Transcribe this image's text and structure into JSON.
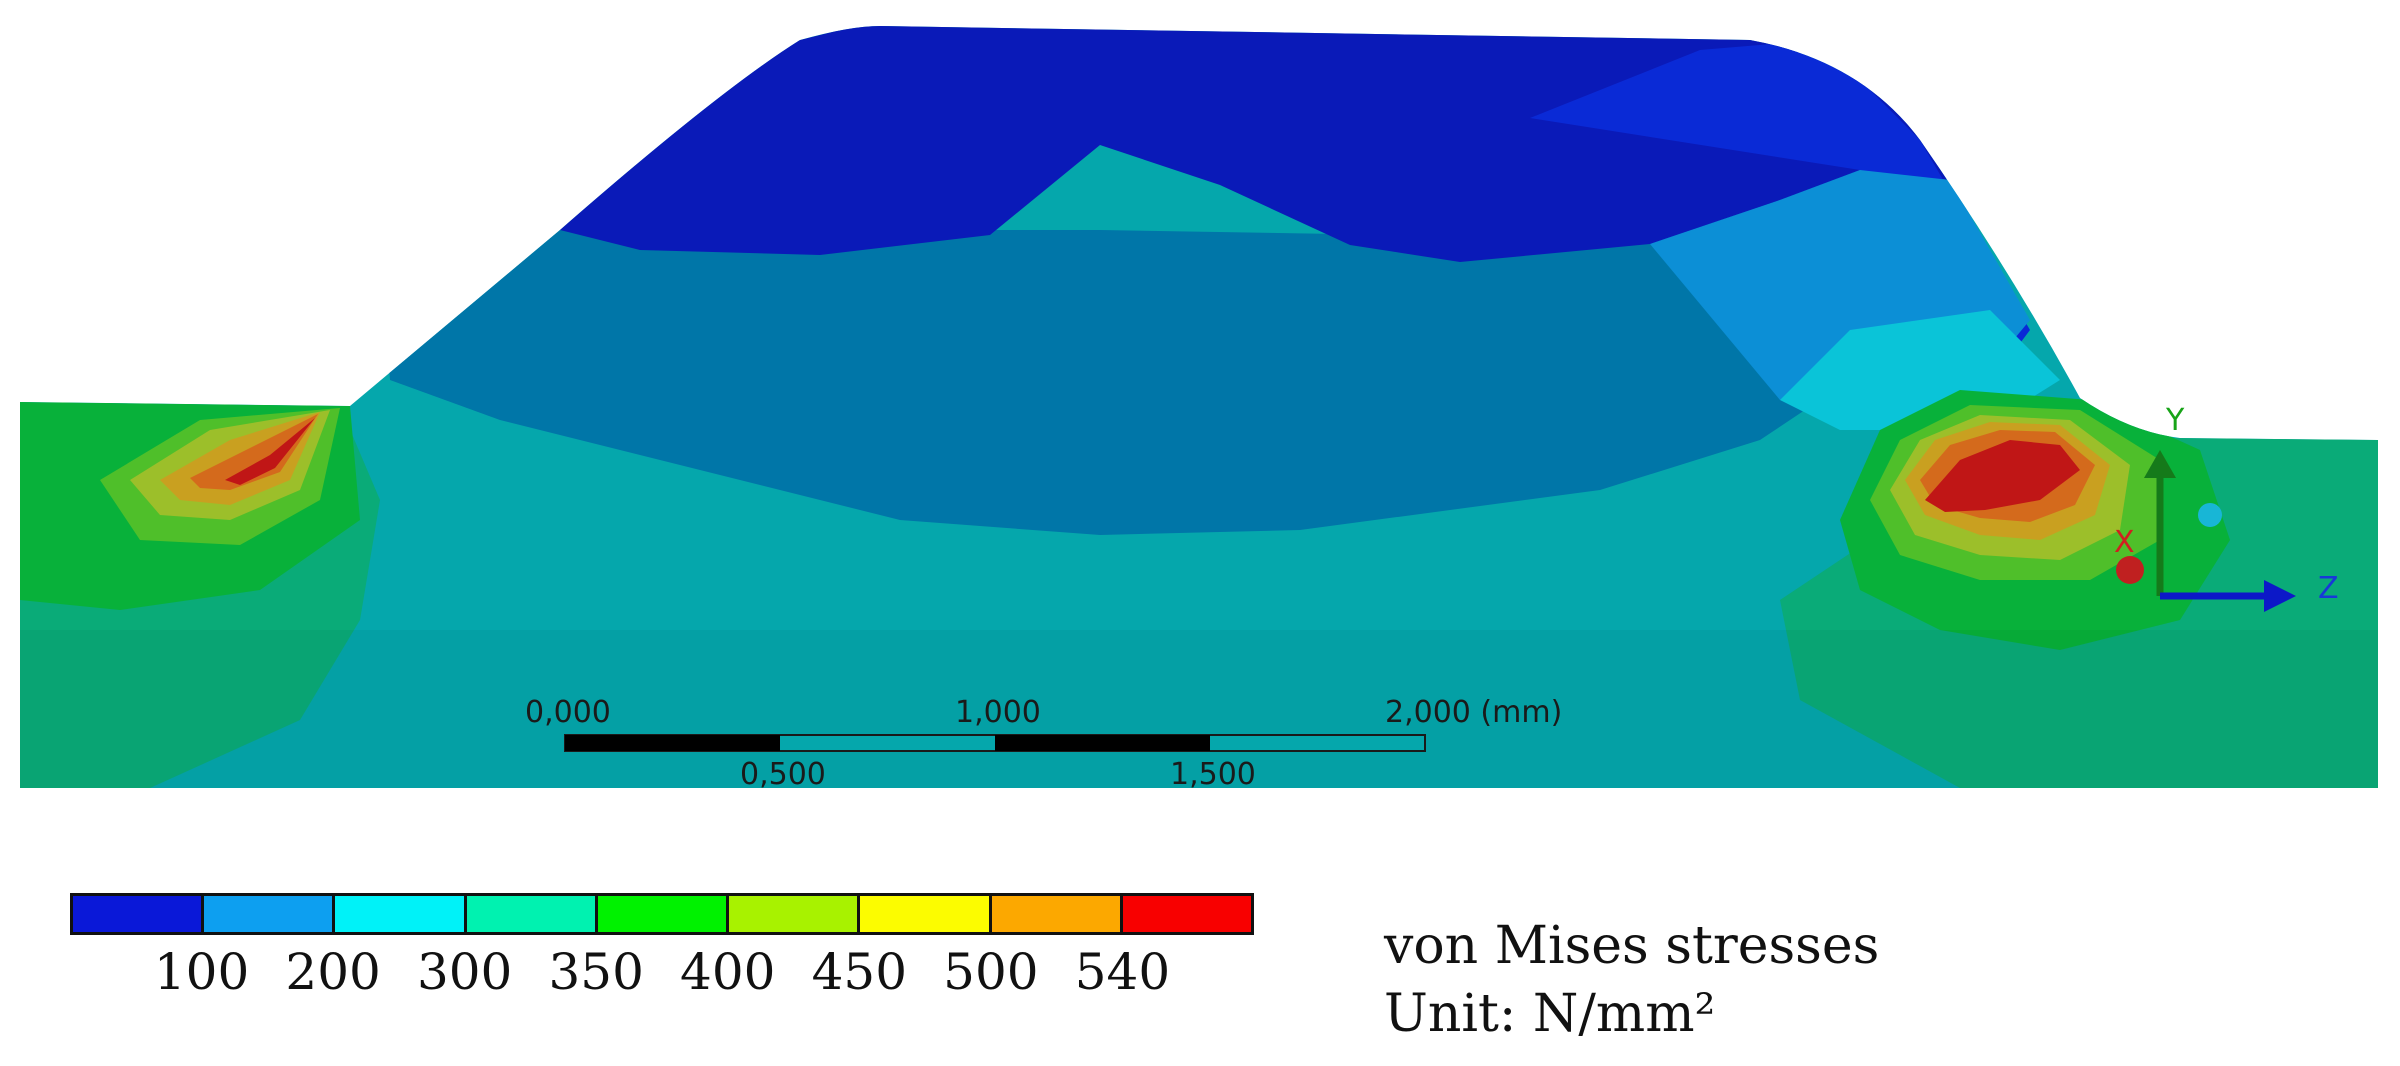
{
  "scale_bar": {
    "top_labels": [
      "0,000",
      "1,000",
      "2,000 (mm)"
    ],
    "bottom_labels": [
      "0,500",
      "1,500"
    ]
  },
  "triad": {
    "y_label": "Y",
    "z_label": "Z",
    "x_label": "X"
  },
  "legend": {
    "band_colors": [
      "#0a18d8",
      "#0d9ff0",
      "#00f2f8",
      "#00f2b0",
      "#00f200",
      "#a8f200",
      "#fcfc00",
      "#fca800",
      "#f80000"
    ],
    "tick_labels": [
      "100",
      "200",
      "300",
      "350",
      "400",
      "450",
      "500",
      "540"
    ]
  },
  "caption": {
    "title": "von Mises stresses",
    "unit": "Unit: N/mm²"
  }
}
